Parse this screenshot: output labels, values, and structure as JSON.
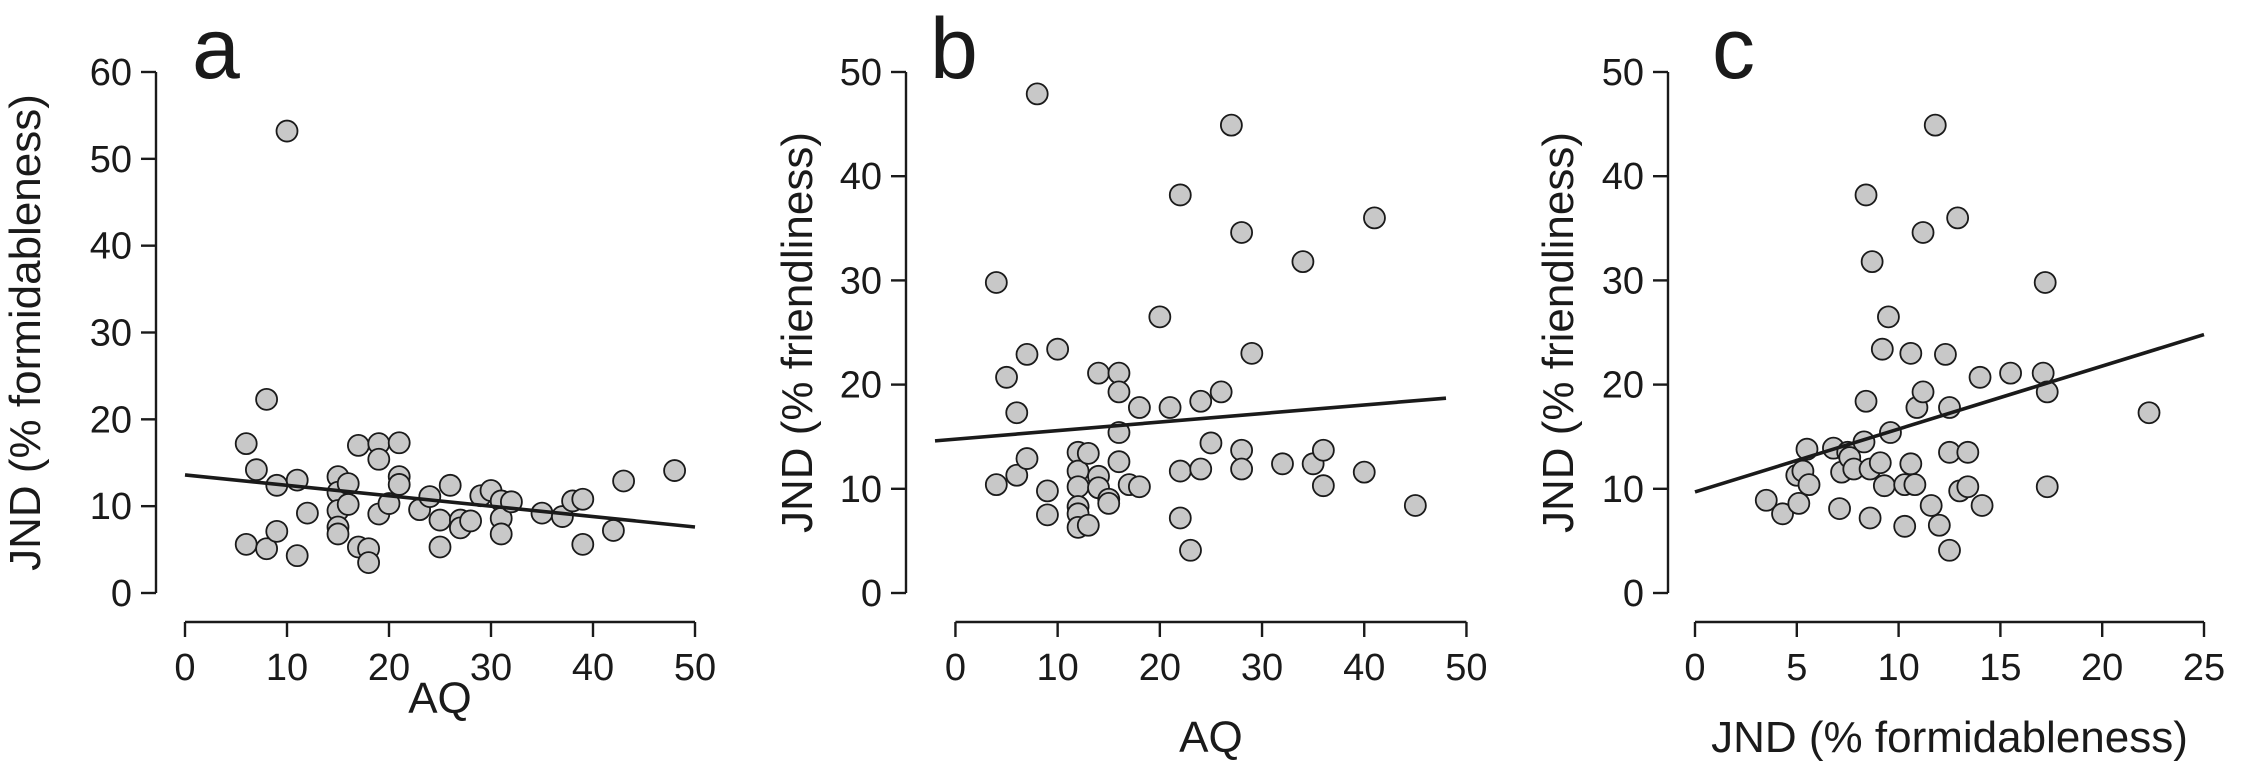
{
  "chart_data": [
    {
      "type": "scatter",
      "panel_label": "a",
      "xlabel": "AQ",
      "ylabel": "JND (% formidableness)",
      "xlim": [
        0,
        50
      ],
      "ylim": [
        0,
        60
      ],
      "x_ticks": [
        0,
        10,
        20,
        30,
        40,
        50
      ],
      "y_ticks": [
        0,
        10,
        20,
        30,
        40,
        50,
        60
      ],
      "grid": false,
      "trend_line": {
        "x": [
          0,
          50
        ],
        "y": [
          13.6,
          7.6
        ]
      },
      "points": [
        [
          6,
          17.2
        ],
        [
          6,
          5.6
        ],
        [
          7,
          14.2
        ],
        [
          8,
          22.3
        ],
        [
          8,
          5.1
        ],
        [
          9,
          12.4
        ],
        [
          9,
          7.1
        ],
        [
          10,
          53.2
        ],
        [
          11,
          13.0
        ],
        [
          11,
          4.3
        ],
        [
          12,
          9.2
        ],
        [
          15,
          13.4
        ],
        [
          15,
          11.6
        ],
        [
          15,
          9.5
        ],
        [
          15,
          7.6
        ],
        [
          15,
          6.8
        ],
        [
          16,
          12.6
        ],
        [
          16,
          10.2
        ],
        [
          17,
          17.0
        ],
        [
          17,
          5.3
        ],
        [
          18,
          5.1
        ],
        [
          18,
          3.5
        ],
        [
          19,
          17.2
        ],
        [
          19,
          15.4
        ],
        [
          19,
          9.1
        ],
        [
          20,
          10.3
        ],
        [
          21,
          17.3
        ],
        [
          21,
          13.4
        ],
        [
          21,
          12.5
        ],
        [
          23,
          9.6
        ],
        [
          24,
          11.1
        ],
        [
          25,
          8.4
        ],
        [
          25,
          5.3
        ],
        [
          26,
          12.4
        ],
        [
          27,
          8.4
        ],
        [
          27,
          7.5
        ],
        [
          28,
          8.3
        ],
        [
          29,
          11.2
        ],
        [
          30,
          11.8
        ],
        [
          31,
          10.6
        ],
        [
          31,
          8.6
        ],
        [
          31,
          6.8
        ],
        [
          32,
          10.5
        ],
        [
          35,
          9.2
        ],
        [
          37,
          8.8
        ],
        [
          38,
          10.6
        ],
        [
          39,
          10.8
        ],
        [
          39,
          5.6
        ],
        [
          42,
          7.2
        ],
        [
          43,
          12.9
        ],
        [
          48,
          14.1
        ]
      ]
    },
    {
      "type": "scatter",
      "panel_label": "b",
      "xlabel": "AQ",
      "ylabel": "JND (% friendliness)",
      "xlim": [
        -2,
        48
      ],
      "ylim": [
        0,
        50
      ],
      "x_ticks": [
        0,
        10,
        20,
        30,
        40,
        50
      ],
      "y_ticks": [
        0,
        10,
        20,
        30,
        40,
        50
      ],
      "grid": false,
      "trend_line": {
        "x": [
          -2,
          48
        ],
        "y": [
          14.6,
          18.7
        ]
      },
      "points": [
        [
          4,
          29.8
        ],
        [
          4,
          10.4
        ],
        [
          5,
          20.7
        ],
        [
          6,
          17.3
        ],
        [
          6,
          11.3
        ],
        [
          7,
          22.9
        ],
        [
          7,
          12.9
        ],
        [
          8,
          47.9
        ],
        [
          9,
          9.8
        ],
        [
          9,
          7.5
        ],
        [
          10,
          23.4
        ],
        [
          12,
          13.5
        ],
        [
          12,
          11.7
        ],
        [
          12,
          10.2
        ],
        [
          12,
          8.3
        ],
        [
          12,
          7.6
        ],
        [
          12,
          6.3
        ],
        [
          13,
          13.4
        ],
        [
          13,
          6.5
        ],
        [
          14,
          21.1
        ],
        [
          14,
          11.2
        ],
        [
          14,
          10.1
        ],
        [
          15,
          9.0
        ],
        [
          15,
          8.6
        ],
        [
          16,
          21.1
        ],
        [
          16,
          19.3
        ],
        [
          16,
          15.4
        ],
        [
          16,
          12.6
        ],
        [
          17,
          10.4
        ],
        [
          18,
          17.8
        ],
        [
          18,
          10.2
        ],
        [
          20,
          26.5
        ],
        [
          21,
          17.8
        ],
        [
          22,
          38.2
        ],
        [
          22,
          11.7
        ],
        [
          22,
          7.2
        ],
        [
          23,
          4.1
        ],
        [
          24,
          18.4
        ],
        [
          24,
          11.9
        ],
        [
          25,
          14.4
        ],
        [
          26,
          19.3
        ],
        [
          27,
          44.9
        ],
        [
          28,
          34.6
        ],
        [
          28,
          13.7
        ],
        [
          28,
          11.9
        ],
        [
          29,
          23.0
        ],
        [
          32,
          12.4
        ],
        [
          34,
          31.8
        ],
        [
          35,
          12.4
        ],
        [
          36,
          13.7
        ],
        [
          36,
          10.3
        ],
        [
          40,
          11.6
        ],
        [
          41,
          36.0
        ],
        [
          45,
          8.4
        ]
      ]
    },
    {
      "type": "scatter",
      "panel_label": "c",
      "xlabel": "JND (% formidableness)",
      "ylabel": "JND (% friendliness)",
      "xlim": [
        0,
        25
      ],
      "ylim": [
        0,
        50
      ],
      "x_ticks": [
        0,
        5,
        10,
        15,
        20,
        25
      ],
      "y_ticks": [
        0,
        10,
        20,
        30,
        40,
        50
      ],
      "grid": false,
      "trend_line": {
        "x": [
          0,
          25
        ],
        "y": [
          9.7,
          24.8
        ]
      },
      "points": [
        [
          3.5,
          8.9
        ],
        [
          4.3,
          7.6
        ],
        [
          5.0,
          11.3
        ],
        [
          5.1,
          8.6
        ],
        [
          5.3,
          11.7
        ],
        [
          5.5,
          13.8
        ],
        [
          5.6,
          10.4
        ],
        [
          6.8,
          13.9
        ],
        [
          7.1,
          8.1
        ],
        [
          7.2,
          11.6
        ],
        [
          7.5,
          13.5
        ],
        [
          7.6,
          13.0
        ],
        [
          7.8,
          11.9
        ],
        [
          8.3,
          14.5
        ],
        [
          8.4,
          38.2
        ],
        [
          8.4,
          18.4
        ],
        [
          8.6,
          11.9
        ],
        [
          8.6,
          7.2
        ],
        [
          8.7,
          31.8
        ],
        [
          9.1,
          12.5
        ],
        [
          9.2,
          23.4
        ],
        [
          9.3,
          10.3
        ],
        [
          9.5,
          26.5
        ],
        [
          9.6,
          15.4
        ],
        [
          10.3,
          10.4
        ],
        [
          10.3,
          6.4
        ],
        [
          10.6,
          23.0
        ],
        [
          10.6,
          12.4
        ],
        [
          10.8,
          10.4
        ],
        [
          10.9,
          17.8
        ],
        [
          11.2,
          34.6
        ],
        [
          11.2,
          19.3
        ],
        [
          11.6,
          8.4
        ],
        [
          11.8,
          44.9
        ],
        [
          12.0,
          6.5
        ],
        [
          12.3,
          22.9
        ],
        [
          12.5,
          17.8
        ],
        [
          12.5,
          13.5
        ],
        [
          12.5,
          4.1
        ],
        [
          12.9,
          36.0
        ],
        [
          13.0,
          9.8
        ],
        [
          13.4,
          13.5
        ],
        [
          13.4,
          10.2
        ],
        [
          14.0,
          20.7
        ],
        [
          14.1,
          8.4
        ],
        [
          15.5,
          21.1
        ],
        [
          17.1,
          21.1
        ],
        [
          17.2,
          29.8
        ],
        [
          17.3,
          19.3
        ],
        [
          17.3,
          10.2
        ],
        [
          22.3,
          17.3
        ]
      ]
    }
  ]
}
